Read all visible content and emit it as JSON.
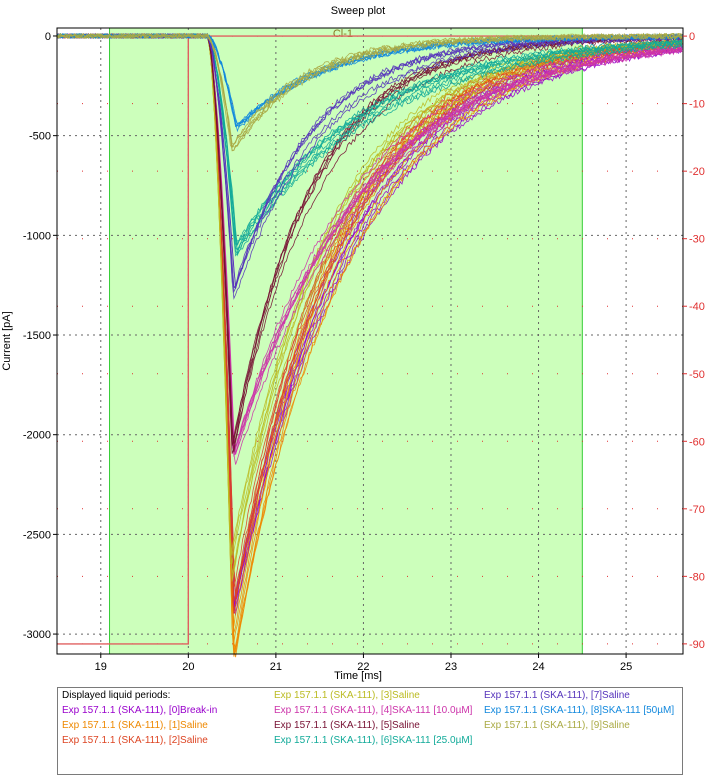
{
  "chart_data": {
    "type": "line",
    "title": "Sweep plot",
    "xlabel": "Time [ms]",
    "ylabel": "Current [pA]",
    "xlim": [
      18.5,
      25.65
    ],
    "ylim": [
      -3100,
      40
    ],
    "y2lim": [
      -91.5,
      1.2
    ],
    "xticks": [
      19,
      20,
      21,
      22,
      23,
      24,
      25
    ],
    "yticks": [
      0,
      -500,
      -1000,
      -1500,
      -2000,
      -2500,
      -3000
    ],
    "y2ticks": [
      0,
      -10,
      -20,
      -30,
      -40,
      -50,
      -60,
      -70,
      -80,
      -90
    ],
    "grid": true,
    "shaded_period": {
      "label": "Cl-1",
      "x": [
        19.1,
        24.5
      ],
      "color": "#ccffbb"
    },
    "voltage_step": {
      "color": "#e06060",
      "x": [
        18.5,
        20.0,
        20.0,
        25.65
      ],
      "y2": [
        -90,
        -90,
        0,
        0
      ]
    },
    "legend_title": "Displayed liquid periods:",
    "series": [
      {
        "name": "Exp 157.1.1 (SKA-111), [0]Break-in",
        "color": "#9900cc",
        "peak_x": 20.52,
        "peak": -2900,
        "tau": 1.3,
        "count": 8
      },
      {
        "name": "Exp 157.1.1 (SKA-111), [1]Saline",
        "color": "#ee8800",
        "peak_x": 20.52,
        "peak": -3050,
        "tau": 1.2,
        "count": 8
      },
      {
        "name": "Exp 157.1.1 (SKA-111), [2]Saline",
        "color": "#dd4422",
        "peak_x": 20.52,
        "peak": -2850,
        "tau": 1.15,
        "count": 6
      },
      {
        "name": "Exp 157.1.1 (SKA-111), [3]Saline",
        "color": "#bbbb22",
        "peak_x": 20.48,
        "peak": -2700,
        "tau": 1.15,
        "count": 6
      },
      {
        "name": "Exp 157.1.1 (SKA-111), [4]SKA-111 [10.0µM]",
        "color": "#cc33aa",
        "peak_x": 20.52,
        "peak": -2100,
        "tau": 1.4,
        "count": 8
      },
      {
        "name": "Exp 157.1.1 (SKA-111), [5]Saline",
        "color": "#771133",
        "peak_x": 20.5,
        "peak": -2050,
        "tau": 0.95,
        "count": 6
      },
      {
        "name": "Exp 157.1.1 (SKA-111), [6]SKA-111 [25.0µM]",
        "color": "#11aa99",
        "peak_x": 20.55,
        "peak": -1080,
        "tau": 1.5,
        "count": 8
      },
      {
        "name": "Exp 157.1.1 (SKA-111), [7]Saline",
        "color": "#5533bb",
        "peak_x": 20.52,
        "peak": -1300,
        "tau": 0.95,
        "count": 6
      },
      {
        "name": "Exp 157.1.1 (SKA-111), [8]SKA-111 [50µM]",
        "color": "#1188dd",
        "peak_x": 20.55,
        "peak": -460,
        "tau": 1.0,
        "count": 6
      },
      {
        "name": "Exp 157.1.1 (SKA-111), [9]Saline",
        "color": "#aaaa44",
        "peak_x": 20.5,
        "peak": -570,
        "tau": 0.85,
        "count": 6
      }
    ]
  }
}
